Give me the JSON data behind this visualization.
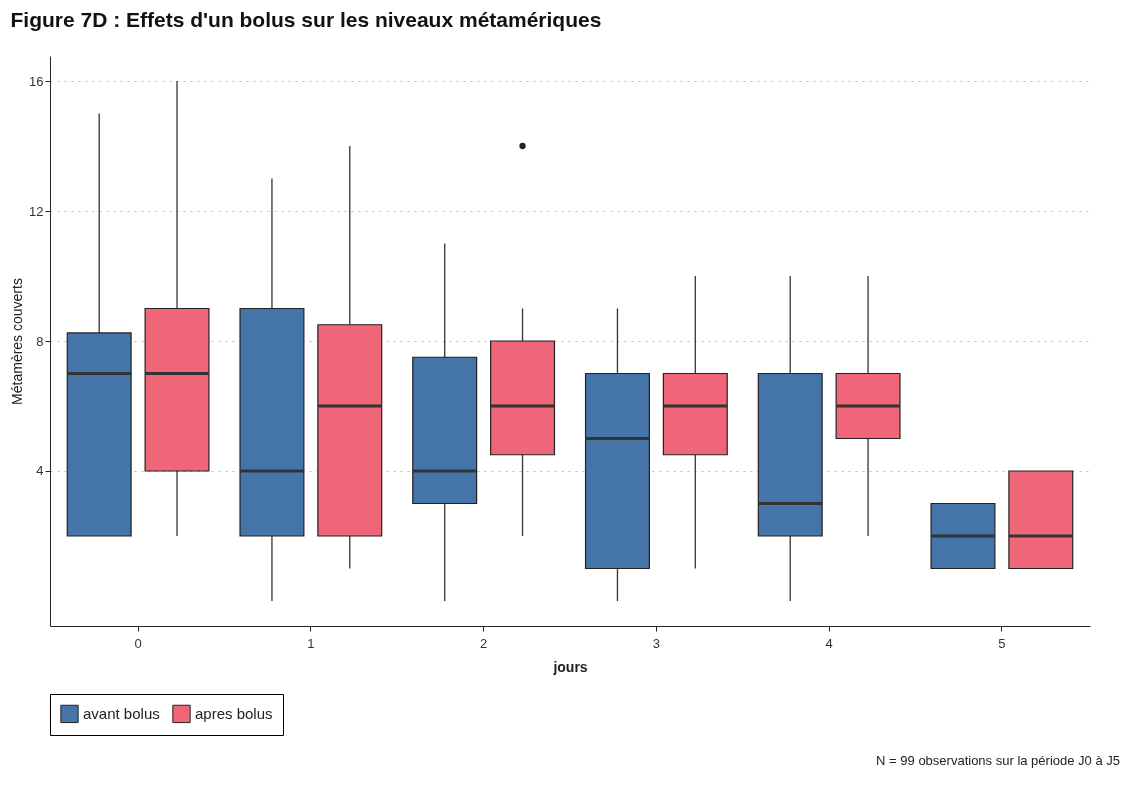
{
  "chart_data": {
    "type": "box",
    "title": "Figure 7D : Effets d'un bolus sur les niveaux métamériques",
    "xlabel": "jours",
    "ylabel": "Métamères couverts",
    "categories": [
      "0",
      "1",
      "2",
      "3",
      "4",
      "5"
    ],
    "ylim": [
      -0.77,
      16.77
    ],
    "yticks": [
      4,
      8,
      12,
      16
    ],
    "grid": "y",
    "legend": "bottom",
    "series": [
      {
        "name": "avant bolus",
        "color": "#4575a8",
        "boxes": [
          {
            "low": 2,
            "q1": 2,
            "median": 7,
            "q3": 8.25,
            "high": 15
          },
          {
            "low": 0,
            "q1": 2,
            "median": 4,
            "q3": 9,
            "high": 13
          },
          {
            "low": 0,
            "q1": 3,
            "median": 4,
            "q3": 7.5,
            "high": 11
          },
          {
            "low": 0,
            "q1": 1,
            "median": 5,
            "q3": 7,
            "high": 9
          },
          {
            "low": 0,
            "q1": 2,
            "median": 3,
            "q3": 7,
            "high": 10
          },
          {
            "low": 1,
            "q1": 1,
            "median": 2,
            "q3": 3,
            "high": 3
          }
        ]
      },
      {
        "name": "apres bolus",
        "color": "#ee6677",
        "boxes": [
          {
            "low": 2,
            "q1": 4,
            "median": 7,
            "q3": 9,
            "high": 16
          },
          {
            "low": 1,
            "q1": 2,
            "median": 6,
            "q3": 8.5,
            "high": 14
          },
          {
            "low": 2,
            "q1": 4.5,
            "median": 6,
            "q3": 8,
            "high": 9,
            "outliers": [
              14
            ]
          },
          {
            "low": 1,
            "q1": 4.5,
            "median": 6,
            "q3": 7,
            "high": 10
          },
          {
            "low": 2,
            "q1": 5,
            "median": 6,
            "q3": 7,
            "high": 10
          },
          {
            "low": 1,
            "q1": 1,
            "median": 2,
            "q3": 4,
            "high": 4
          }
        ]
      }
    ],
    "annotations": [
      "N = 99 observations sur la période J0 à J5"
    ]
  }
}
